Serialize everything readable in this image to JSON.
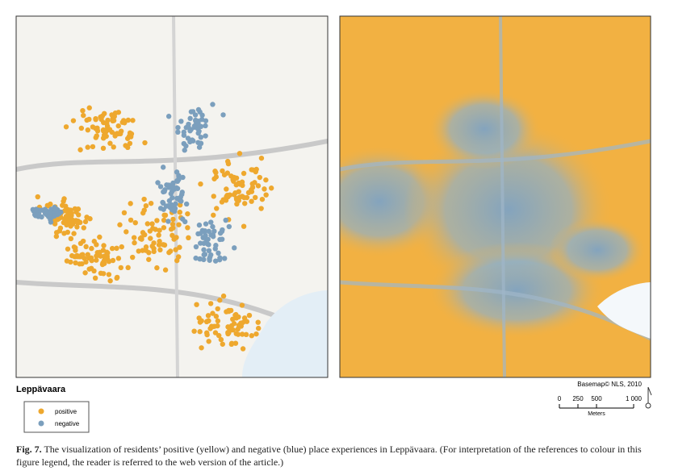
{
  "map_title": "Leppävaara",
  "legend": [
    {
      "label": "positive",
      "color": "#eea82e"
    },
    {
      "label": "negative",
      "color": "#7b9fbd"
    }
  ],
  "attribution": "Basemap© NLS, 2010",
  "scale_bar": {
    "labels": [
      "0",
      "250",
      "500",
      "1 000"
    ],
    "unit": "Meters"
  },
  "caption": {
    "label": "Fig. 7.",
    "text": "The visualization of residents’ positive (yellow) and negative (blue) place experiences in Leppävaara. (For interpretation of the references to colour in this figure legend, the reader is referred to the web version of the article.)"
  }
}
